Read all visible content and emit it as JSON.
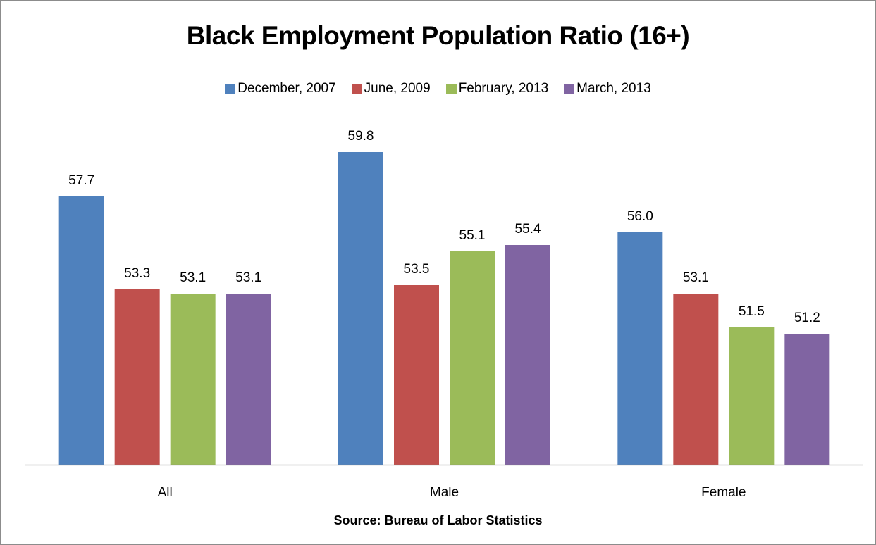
{
  "chart_data": {
    "type": "bar",
    "title": "Black Employment Population Ratio (16+)",
    "xlabel": "Source: Bureau of Labor Statistics",
    "ylabel": "",
    "categories": [
      "All",
      "Male",
      "Female"
    ],
    "series": [
      {
        "name": "December, 2007",
        "color": "#4F81BD",
        "values": [
          57.7,
          59.8,
          56.0
        ]
      },
      {
        "name": "June, 2009",
        "color": "#C0504D",
        "values": [
          53.3,
          53.5,
          53.1
        ]
      },
      {
        "name": "February, 2013",
        "color": "#9BBB59",
        "values": [
          53.1,
          55.1,
          51.5
        ]
      },
      {
        "name": "March, 2013",
        "color": "#8064A2",
        "values": [
          53.1,
          55.4,
          51.2
        ]
      }
    ],
    "value_labels": [
      [
        "57.7",
        "59.8",
        "56.0"
      ],
      [
        "53.3",
        "53.5",
        "53.1"
      ],
      [
        "53.1",
        "55.1",
        "51.5"
      ],
      [
        "53.1",
        "55.4",
        "51.2"
      ]
    ],
    "ylim": [
      45,
      62
    ],
    "grid": false,
    "legend_position": "top"
  }
}
